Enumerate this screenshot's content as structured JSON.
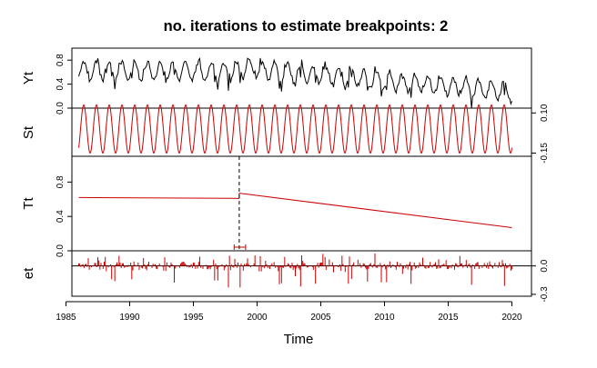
{
  "chart_data": {
    "type": "line",
    "title": "no. iterations to estimate breakpoints: 2",
    "xlabel": "Time",
    "x_range": [
      1986,
      2020
    ],
    "x_ticks": [
      "1985",
      "1990",
      "1995",
      "2000",
      "2005",
      "2010",
      "2015",
      "2020"
    ],
    "breakpoint": {
      "x": 1998.6,
      "ci": [
        1998.2,
        1999.1
      ]
    },
    "colors": {
      "data": "#000000",
      "component": "#cc0000"
    },
    "panels": [
      {
        "name": "Yt",
        "ylabel": "Yt",
        "axis_side": "left",
        "ylim": [
          0.0,
          1.0
        ],
        "ticks": [
          "0.0",
          "0.4",
          "0.8"
        ],
        "tick_values": [
          0.0,
          0.4,
          0.8
        ],
        "series_color": "#000000",
        "description_values": "monthly observed series, 1986-2020, seasonal oscillation around a declining level"
      },
      {
        "name": "St",
        "ylabel": "St",
        "axis_side": "right",
        "ylim": [
          -0.17,
          0.13
        ],
        "ticks": [
          "-0.15",
          "0.10"
        ],
        "tick_values": [
          -0.15,
          0.1
        ],
        "series_color": "#cc0000",
        "amplitude": 0.15,
        "period_years": 1.0
      },
      {
        "name": "Tt",
        "ylabel": "Tt",
        "axis_side": "left",
        "ylim": [
          0.0,
          1.1
        ],
        "ticks": [
          "0.0",
          "0.4",
          "0.8"
        ],
        "tick_values": [
          0.0,
          0.4,
          0.8
        ],
        "series_color": "#cc0000",
        "segments": [
          {
            "x": [
              1986,
              1998.6
            ],
            "y": [
              0.62,
              0.61
            ]
          },
          {
            "x": [
              1998.6,
              2020
            ],
            "y": [
              0.67,
              0.27
            ]
          }
        ]
      },
      {
        "name": "et",
        "ylabel": "et",
        "axis_side": "right",
        "ylim": [
          -0.32,
          0.16
        ],
        "ticks": [
          "-0.3",
          "0.0"
        ],
        "tick_values": [
          -0.3,
          0.0
        ],
        "series_color": "#cc0000"
      }
    ]
  }
}
